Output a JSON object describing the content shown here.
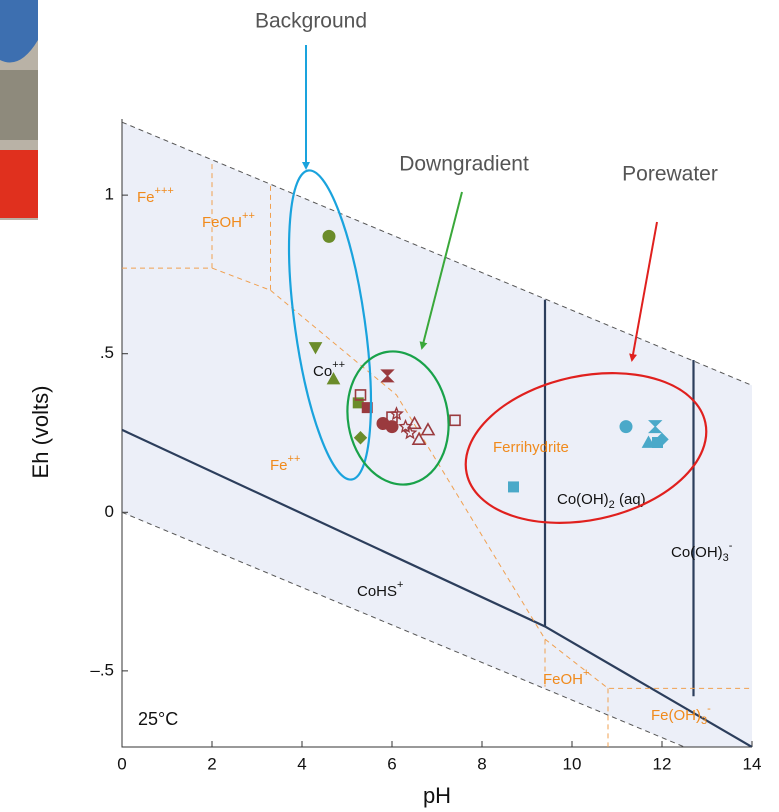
{
  "chart_data": {
    "type": "scatter",
    "xlabel": "pH",
    "ylabel": "Eh (volts)",
    "annotation": "25°C",
    "xlim": [
      0,
      14
    ],
    "ylim": [
      -0.74,
      1.24
    ],
    "xticks": [
      0,
      2,
      4,
      6,
      8,
      10,
      12,
      14
    ],
    "yticks": [
      {
        "value": 1,
        "label": "1"
      },
      {
        "value": 0.5,
        "label": ".5"
      },
      0,
      {
        "value": -0.5,
        "label": "–.5"
      }
    ],
    "series": [
      {
        "name": "Background",
        "color": "#6b8c2a",
        "x": [
          4.6,
          4.3,
          4.7,
          5.25,
          5.3
        ],
        "values": [
          0.87,
          0.52,
          0.42,
          0.345,
          0.235
        ],
        "markers": [
          "circle",
          "triangle-down",
          "triangle-up",
          "square",
          "diamond"
        ]
      },
      {
        "name": "Downgradient",
        "color": "#9a3a3e",
        "x": [
          5.3,
          5.45,
          5.9,
          5.8,
          6.0,
          6.1,
          6.3,
          6.5,
          6.6,
          6.8,
          7.4,
          6.0,
          6.4
        ],
        "values": [
          0.37,
          0.33,
          0.43,
          0.28,
          0.3,
          0.31,
          0.27,
          0.28,
          0.23,
          0.26,
          0.29,
          0.27,
          0.25
        ],
        "markers": [
          "square-open",
          "square",
          "hourglass",
          "circle",
          "square-open",
          "star",
          "star",
          "triangle-up-open",
          "triangle-up-open",
          "triangle-up-open",
          "square-open",
          "circle",
          "star"
        ]
      },
      {
        "name": "Porewater",
        "color": "#4aa9c9",
        "x": [
          11.2,
          11.85,
          11.7,
          12.0,
          11.9,
          8.7
        ],
        "values": [
          0.27,
          0.27,
          0.22,
          0.23,
          0.22,
          0.08
        ],
        "markers": [
          "circle",
          "hourglass",
          "triangle-up",
          "diamond",
          "square",
          "square"
        ]
      }
    ],
    "lines": [
      {
        "style": "dashed",
        "color": "#555555",
        "x": [
          0,
          14
        ],
        "values": [
          1.23,
          0.4
        ]
      },
      {
        "style": "dashed",
        "color": "#555555",
        "x": [
          0,
          12.5
        ],
        "values": [
          0,
          -0.74
        ]
      },
      {
        "style": "solid",
        "color": "#2c3e5c",
        "x": [
          0,
          9.4,
          14
        ],
        "values": [
          0.26,
          -0.36,
          -0.74
        ]
      },
      {
        "style": "solid",
        "color": "#2c3e5c",
        "x": [
          9.4,
          9.4
        ],
        "values": [
          -0.36,
          0.67
        ]
      },
      {
        "style": "solid",
        "color": "#2c3e5c",
        "x": [
          12.7,
          12.7
        ],
        "values": [
          -0.58,
          0.48
        ]
      },
      {
        "style": "dashed",
        "color": "#f0a050",
        "x": [
          0,
          2,
          2
        ],
        "values": [
          0.77,
          0.77,
          1.11
        ]
      },
      {
        "style": "dashed",
        "color": "#f0a050",
        "x": [
          2,
          3.3,
          3.3
        ],
        "values": [
          0.77,
          0.7,
          1.03
        ]
      },
      {
        "style": "dashed",
        "color": "#f0a050",
        "x": [
          3.3,
          6.1,
          9.4,
          9.4
        ],
        "values": [
          0.7,
          0.37,
          -0.4,
          -0.55
        ]
      },
      {
        "style": "dashed",
        "color": "#f0a050",
        "x": [
          9.4,
          10.8,
          14
        ],
        "values": [
          -0.4,
          -0.555,
          -0.555
        ]
      },
      {
        "style": "dashed",
        "color": "#f0a050",
        "x": [
          10.8,
          10.8
        ],
        "values": [
          -0.555,
          -0.74
        ]
      }
    ],
    "field_labels": [
      {
        "color": "#f08a1c",
        "parts": [
          "Fe",
          "+++"
        ],
        "kinds": [
          "",
          "sup"
        ]
      },
      {
        "color": "#f08a1c",
        "parts": [
          "FeOH",
          "++"
        ],
        "kinds": [
          "",
          "sup"
        ]
      },
      {
        "color": "#111111",
        "parts": [
          "Co",
          "++"
        ],
        "kinds": [
          "",
          "sup"
        ]
      },
      {
        "color": "#f08a1c",
        "parts": [
          "Fe",
          "++"
        ],
        "kinds": [
          "",
          "sup"
        ]
      },
      {
        "color": "#f08a1c",
        "parts": [
          "Ferrihydrite"
        ],
        "kinds": [
          ""
        ]
      },
      {
        "color": "#111111",
        "parts": [
          "Co(OH)",
          "2",
          " (aq)"
        ],
        "kinds": [
          "",
          "sub",
          ""
        ]
      },
      {
        "color": "#111111",
        "parts": [
          "Co(OH)",
          "3",
          "-"
        ],
        "kinds": [
          "",
          "sub",
          "sup"
        ]
      },
      {
        "color": "#111111",
        "parts": [
          "CoHS",
          "+"
        ],
        "kinds": [
          "",
          "sup"
        ]
      },
      {
        "color": "#f08a1c",
        "parts": [
          "FeOH",
          "+"
        ],
        "kinds": [
          "",
          "sup"
        ]
      },
      {
        "color": "#f08a1c",
        "parts": [
          "Fe(OH)",
          "3",
          "-"
        ],
        "kinds": [
          "",
          "sub",
          "sup"
        ]
      }
    ]
  }
}
